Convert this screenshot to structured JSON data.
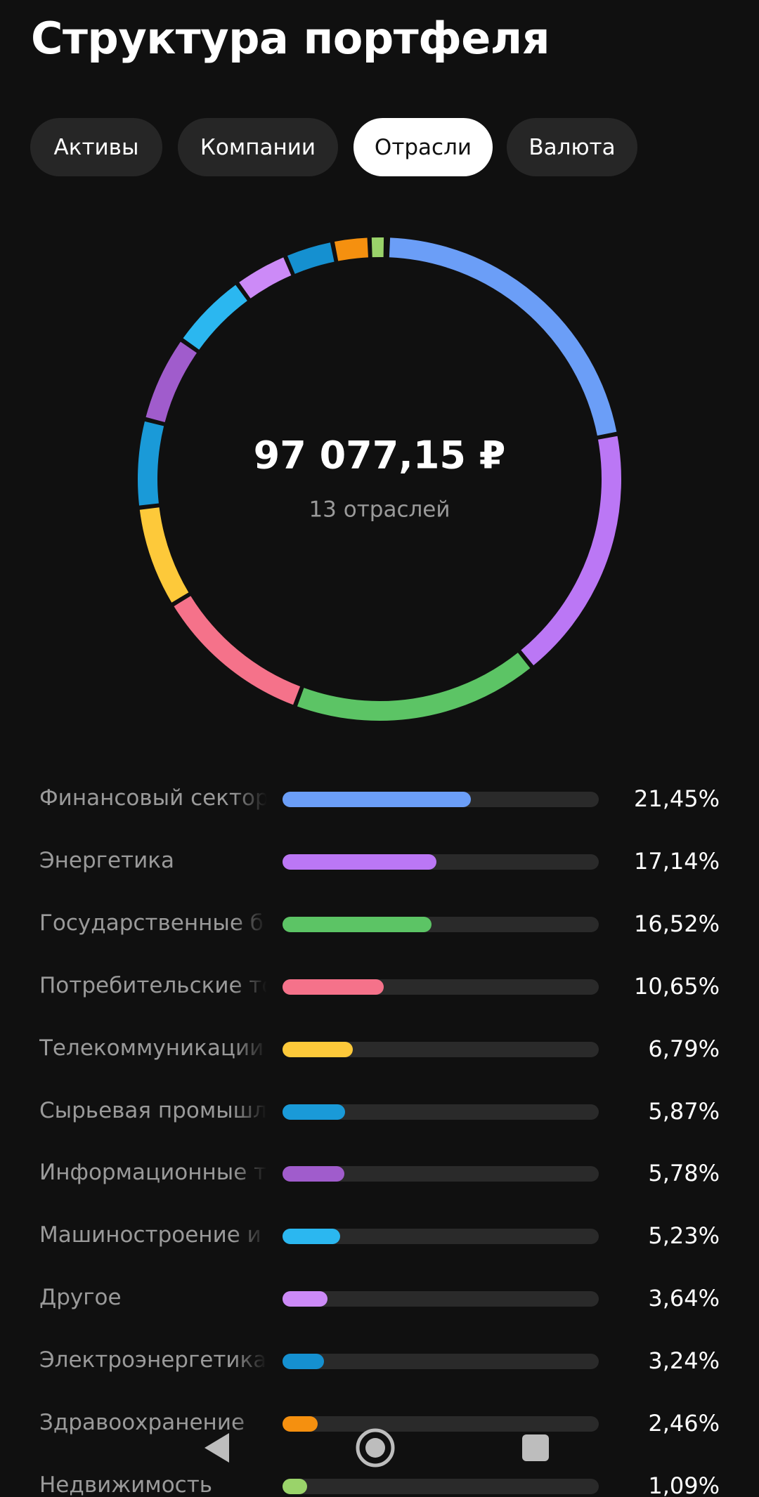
{
  "header": {
    "title": "Структура портфеля"
  },
  "tabs": {
    "items": [
      "Активы",
      "Компании",
      "Отрасли",
      "Валюта"
    ],
    "active": 2
  },
  "chart_data": {
    "type": "donut",
    "total": "97 077,15 ₽",
    "subtitle": "13 отраслей",
    "categories": [
      "Финансовый сектор",
      "Энергетика",
      "Государственные б",
      "Потребительские то",
      "Телекоммуникации",
      "Сырьевая промышл",
      "Информационные т",
      "Машиностроение и",
      "Другое",
      "Электроэнергетика",
      "Здравоохранение",
      "Недвижимость"
    ],
    "values": [
      21.45,
      17.14,
      16.52,
      10.65,
      6.79,
      5.87,
      5.78,
      5.23,
      3.64,
      3.24,
      2.46,
      1.09
    ],
    "value_labels": [
      "21,45%",
      "17,14%",
      "16,52%",
      "10,65%",
      "6,79%",
      "5,87%",
      "5,78%",
      "5,23%",
      "3,64%",
      "3,24%",
      "2,46%",
      "1,09%"
    ],
    "colors": [
      "#6b9ef7",
      "#bb77f5",
      "#5cc465",
      "#f5728a",
      "#fdc93a",
      "#1a9ad8",
      "#a05ccc",
      "#2bb7f0",
      "#cc8af7",
      "#1590d0",
      "#f5900f",
      "#9ad36a"
    ]
  }
}
